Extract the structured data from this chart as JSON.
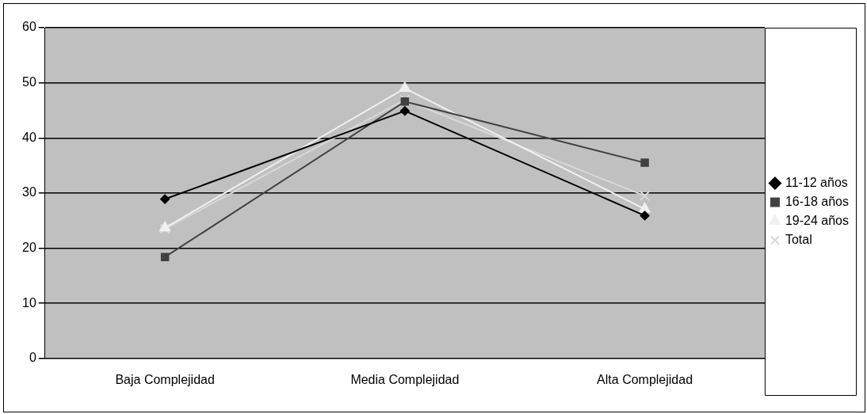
{
  "chart_data": {
    "type": "line",
    "categories": [
      "Baja Complejidad",
      "Media Complejidad",
      "Alta Complejidad"
    ],
    "series": [
      {
        "name": "11-12 años",
        "color": "#000000",
        "marker": "diamond",
        "values": [
          28.9,
          44.9,
          25.9
        ]
      },
      {
        "name": "16-18 años",
        "color": "#404040",
        "marker": "square",
        "values": [
          18.4,
          46.6,
          35.5
        ]
      },
      {
        "name": "19-24 años",
        "color": "#f0f0f0",
        "marker": "triangle",
        "values": [
          23.7,
          49.0,
          27.1
        ]
      },
      {
        "name": "Total",
        "color": "#d8d8d8",
        "marker": "cross",
        "values": [
          23.5,
          46.9,
          29.5
        ]
      }
    ],
    "ylim": [
      0,
      60
    ],
    "yticks": [
      0,
      10,
      20,
      30,
      40,
      50,
      60
    ],
    "grid": "y",
    "legend": "right",
    "line_style": "solid"
  }
}
